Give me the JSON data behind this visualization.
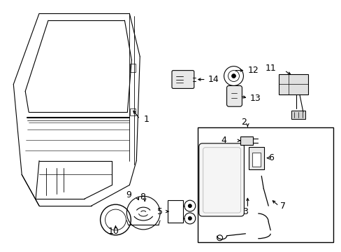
{
  "bg_color": "#ffffff",
  "line_color": "#000000",
  "label_color": "#000000",
  "fig_width": 4.89,
  "fig_height": 3.6,
  "dpi": 100
}
